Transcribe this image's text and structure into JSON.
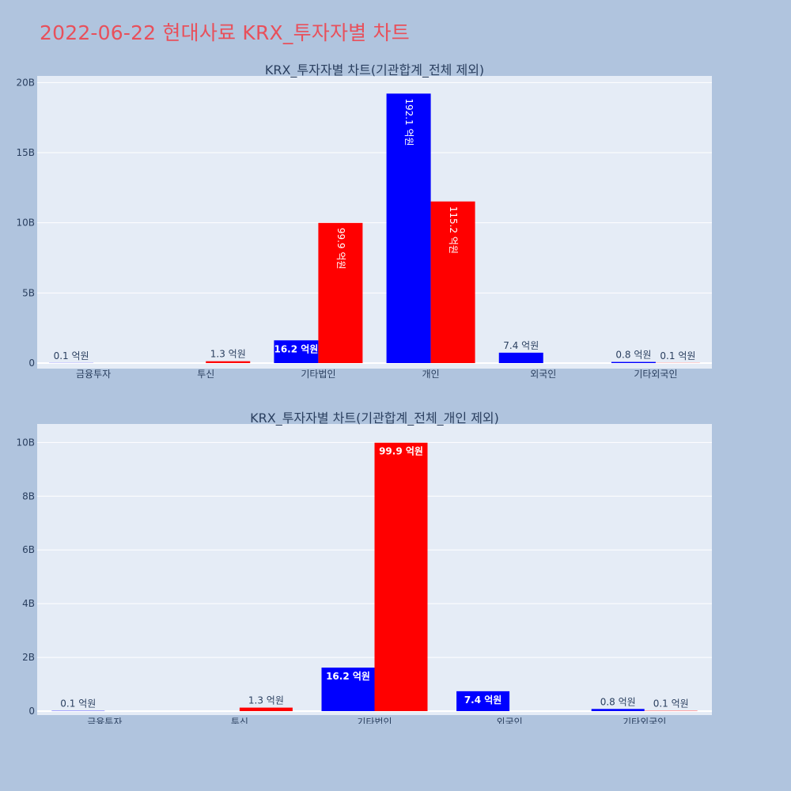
{
  "page": {
    "title": "2022-06-22 현대사료 KRX_투자자별 차트"
  },
  "colors": {
    "title": "#e8505b",
    "plot_bg": "#e5ecf6",
    "page_bg": "#b0c4de",
    "series_buy": "#0000ff",
    "series_sell": "#ff0000"
  },
  "chart_data": [
    {
      "type": "bar",
      "title": "KRX_투자자별 차트(기관합계_전체 제외)",
      "categories": [
        "금융투자",
        "투신",
        "기타법인",
        "개인",
        "외국인",
        "기타외국인"
      ],
      "y_unit": "KRW",
      "ylim": [
        0,
        20300000000
      ],
      "yticks": [
        0,
        5000000000,
        10000000000,
        15000000000,
        20000000000
      ],
      "ytick_labels": [
        "0",
        "5B",
        "10B",
        "15B",
        "20B"
      ],
      "grid": true,
      "series": [
        {
          "color": "#0000ff",
          "values": [
            10000000,
            0,
            1620000000,
            19210000000,
            740000000,
            80000000
          ],
          "labels": [
            "0.1 억원",
            "",
            "16.2 억원",
            "192.1 억원",
            "7.4 억원",
            "0.8 억원"
          ]
        },
        {
          "color": "#ff0000",
          "values": [
            0,
            130000000,
            9990000000,
            11520000000,
            0,
            10000000
          ],
          "labels": [
            "",
            "1.3 억원",
            "99.9 억원",
            "115.2 억원",
            "",
            "0.1 억원"
          ]
        }
      ]
    },
    {
      "type": "bar",
      "title": "KRX_투자자별 차트(기관합계_전체_개인 제외)",
      "categories": [
        "금융투자",
        "투신",
        "기타법인",
        "외국인",
        "기타외국인"
      ],
      "y_unit": "KRW",
      "ylim": [
        0,
        10600000000
      ],
      "yticks": [
        0,
        2000000000,
        4000000000,
        6000000000,
        8000000000,
        10000000000
      ],
      "ytick_labels": [
        "0",
        "2B",
        "4B",
        "6B",
        "8B",
        "10B"
      ],
      "grid": true,
      "series": [
        {
          "color": "#0000ff",
          "values": [
            10000000,
            0,
            1620000000,
            740000000,
            80000000
          ],
          "labels": [
            "0.1 억원",
            "",
            "16.2 억원",
            "7.4 억원",
            "0.8 억원"
          ]
        },
        {
          "color": "#ff0000",
          "values": [
            0,
            130000000,
            9990000000,
            0,
            10000000
          ],
          "labels": [
            "",
            "1.3 억원",
            "99.9 억원",
            "",
            "0.1 억원"
          ]
        }
      ]
    }
  ]
}
